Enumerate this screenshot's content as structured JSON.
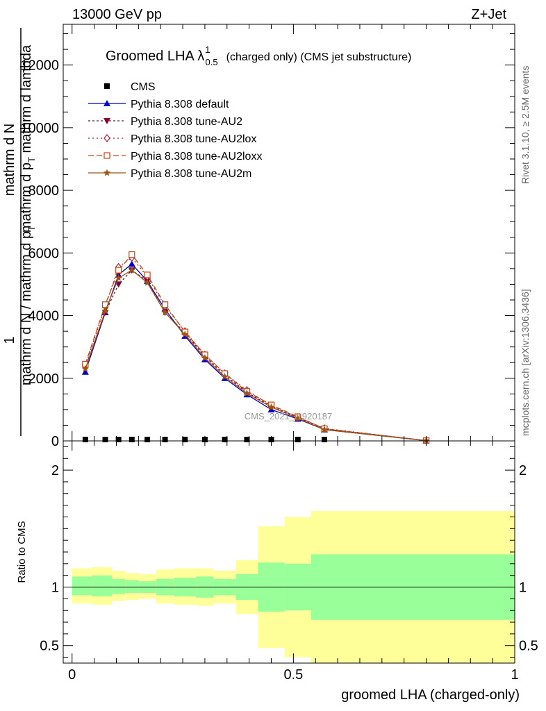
{
  "header": {
    "left": "13000 GeV pp",
    "right": "Z+Jet"
  },
  "side_labels": {
    "rivet": "Rivet 3.1.10, ≥ 2.5M events",
    "mcplots": "mcplots.cern.ch [arXiv:1306.3436]"
  },
  "watermark": "CMS_2021_I1920187",
  "chart_data": [
    {
      "type": "line",
      "title": "Groomed LHA λ",
      "title_sup": "1",
      "title_sub": "0.5",
      "title_suffix": "(charged only) (CMS jet substructure)",
      "ylabel_parts": [
        "1",
        "mathrm d N / mathrm d p",
        "T",
        "mathrm d N",
        "mathrm d p",
        "T",
        "mathrm d lambda"
      ],
      "ylabel_main": "mathrm d N / mathrm d p_T",
      "ylim": [
        0,
        13300
      ],
      "yticks": [
        0,
        2000,
        4000,
        6000,
        8000,
        10000,
        12000
      ],
      "ytick_labels": [
        "0",
        "2000",
        "4000",
        "6000",
        "8000",
        "10000",
        "12000"
      ],
      "xlim": [
        -0.02,
        1.0
      ],
      "x": [
        0.03,
        0.075,
        0.105,
        0.135,
        0.17,
        0.21,
        0.255,
        0.3,
        0.345,
        0.395,
        0.45,
        0.51,
        0.57,
        0.8
      ],
      "series": [
        {
          "name": "CMS",
          "marker": "square",
          "color": "#000000",
          "dash": "none",
          "values": [
            0,
            0,
            0,
            0,
            0,
            0,
            0,
            0,
            0,
            0,
            0,
            0,
            0,
            0
          ]
        },
        {
          "name": "Pythia 8.308 default",
          "marker": "triangle-up",
          "color": "#0000cc",
          "dash": "none",
          "values": [
            2200,
            4100,
            5300,
            5650,
            5100,
            4200,
            3350,
            2600,
            2000,
            1480,
            1000,
            700,
            360,
            10
          ]
        },
        {
          "name": "Pythia 8.308 tune-AU2",
          "marker": "triangle-down",
          "color": "#880033",
          "dash": "3,3",
          "values": [
            2350,
            4100,
            5000,
            5450,
            5100,
            4100,
            3450,
            2700,
            2100,
            1550,
            1100,
            750,
            380,
            10
          ]
        },
        {
          "name": "Pythia 8.308 tune-AU2lox",
          "marker": "diamond",
          "color": "#aa2233",
          "dash": "2,4",
          "values": [
            2400,
            4300,
            5550,
            5850,
            5250,
            4300,
            3500,
            2750,
            2150,
            1620,
            1120,
            760,
            400,
            10
          ]
        },
        {
          "name": "Pythia 8.308 tune-AU2loxx",
          "marker": "square-open",
          "color": "#cc4411",
          "dash": "8,4",
          "values": [
            2450,
            4350,
            5450,
            5950,
            5300,
            4350,
            3480,
            2750,
            2150,
            1580,
            1150,
            770,
            390,
            10
          ]
        },
        {
          "name": "Pythia 8.308 tune-AU2m",
          "marker": "star",
          "color": "#995511",
          "dash": "none",
          "values": [
            2300,
            4150,
            5200,
            5450,
            5050,
            4100,
            3400,
            2650,
            2050,
            1520,
            1080,
            720,
            360,
            10
          ]
        }
      ]
    },
    {
      "type": "area",
      "ylabel": "Ratio to CMS",
      "xlabel": "groomed LHA (charged-only)",
      "xlim": [
        -0.02,
        1.0
      ],
      "ylim": [
        0.35,
        2.25
      ],
      "yticks": [
        0.5,
        1,
        2
      ],
      "ytick_labels": [
        "0.5",
        "1",
        "2"
      ],
      "xticks": [
        0,
        0.5,
        1
      ],
      "xtick_labels": [
        "0",
        "0.5",
        "1"
      ],
      "bins": [
        {
          "lo": 0.0,
          "hi": 0.045,
          "green": [
            0.93,
            1.09
          ],
          "yellow": [
            0.86,
            1.16
          ]
        },
        {
          "lo": 0.045,
          "hi": 0.09,
          "green": [
            0.92,
            1.1
          ],
          "yellow": [
            0.85,
            1.17
          ]
        },
        {
          "lo": 0.09,
          "hi": 0.12,
          "green": [
            0.94,
            1.07
          ],
          "yellow": [
            0.88,
            1.14
          ]
        },
        {
          "lo": 0.12,
          "hi": 0.15,
          "green": [
            0.95,
            1.06
          ],
          "yellow": [
            0.89,
            1.12
          ]
        },
        {
          "lo": 0.15,
          "hi": 0.19,
          "green": [
            0.95,
            1.05
          ],
          "yellow": [
            0.9,
            1.11
          ]
        },
        {
          "lo": 0.19,
          "hi": 0.23,
          "green": [
            0.93,
            1.07
          ],
          "yellow": [
            0.86,
            1.15
          ]
        },
        {
          "lo": 0.23,
          "hi": 0.28,
          "green": [
            0.92,
            1.08
          ],
          "yellow": [
            0.85,
            1.16
          ]
        },
        {
          "lo": 0.28,
          "hi": 0.32,
          "green": [
            0.91,
            1.09
          ],
          "yellow": [
            0.84,
            1.16
          ]
        },
        {
          "lo": 0.32,
          "hi": 0.37,
          "green": [
            0.93,
            1.07
          ],
          "yellow": [
            0.86,
            1.14
          ]
        },
        {
          "lo": 0.37,
          "hi": 0.42,
          "green": [
            0.89,
            1.11
          ],
          "yellow": [
            0.77,
            1.23
          ]
        },
        {
          "lo": 0.42,
          "hi": 0.48,
          "green": [
            0.79,
            1.21
          ],
          "yellow": [
            0.48,
            1.52
          ]
        },
        {
          "lo": 0.48,
          "hi": 0.54,
          "green": [
            0.8,
            1.2
          ],
          "yellow": [
            0.4,
            1.6
          ]
        },
        {
          "lo": 0.54,
          "hi": 1.0,
          "green": [
            0.72,
            1.28
          ],
          "yellow": [
            0.35,
            1.65
          ]
        }
      ],
      "band_colors": {
        "green": "#99ff99",
        "yellow": "#ffff99"
      }
    }
  ]
}
